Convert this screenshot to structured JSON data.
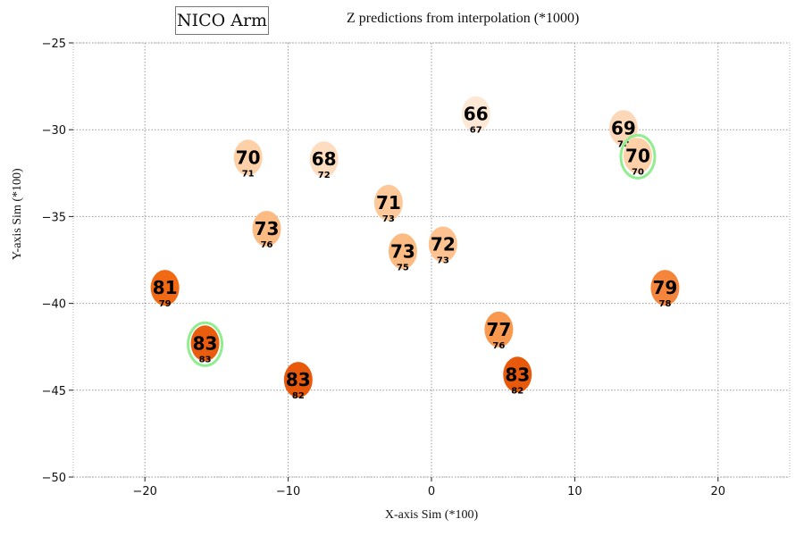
{
  "chart_data": {
    "type": "scatter",
    "title": "NICO Arm",
    "subtitle": "Z predictions from interpolation (*1000)",
    "xlabel": "X-axis Sim (*100)",
    "ylabel": "Y-axis Sim (*100)",
    "xlim": [
      -25,
      25
    ],
    "ylim": [
      -50,
      -25
    ],
    "xticks": [
      -20,
      -10,
      0,
      10,
      20
    ],
    "xtick_labels": [
      "−20",
      "−10",
      "0",
      "10",
      "20"
    ],
    "yticks": [
      -25,
      -30,
      -35,
      -40,
      -45,
      -50
    ],
    "ytick_labels": [
      "−25",
      "−30",
      "−35",
      "−40",
      "−45",
      "−50"
    ],
    "grid": true,
    "points": [
      {
        "x": 3.1,
        "y": -29.1,
        "value": 66,
        "sublabel": 67,
        "color": "#fde8d6",
        "highlight": false
      },
      {
        "x": 13.4,
        "y": -29.9,
        "value": 69,
        "sublabel": 70,
        "color": "#fdd8b8",
        "highlight": false
      },
      {
        "x": 14.4,
        "y": -31.5,
        "value": 70,
        "sublabel": 70,
        "color": "#fdd0a8",
        "highlight": true
      },
      {
        "x": -12.8,
        "y": -31.6,
        "value": 70,
        "sublabel": 71,
        "color": "#fdd0a8",
        "highlight": false
      },
      {
        "x": -7.5,
        "y": -31.7,
        "value": 68,
        "sublabel": 72,
        "color": "#fddcc0",
        "highlight": false
      },
      {
        "x": -3.0,
        "y": -34.2,
        "value": 71,
        "sublabel": 73,
        "color": "#fdc89a",
        "highlight": false
      },
      {
        "x": -11.5,
        "y": -35.7,
        "value": 73,
        "sublabel": 76,
        "color": "#fdbb84",
        "highlight": false
      },
      {
        "x": 0.8,
        "y": -36.6,
        "value": 72,
        "sublabel": 73,
        "color": "#fdc290",
        "highlight": false
      },
      {
        "x": -2.0,
        "y": -37.0,
        "value": 73,
        "sublabel": 75,
        "color": "#fdbb84",
        "highlight": false
      },
      {
        "x": -18.6,
        "y": -39.1,
        "value": 81,
        "sublabel": 79,
        "color": "#f16913",
        "highlight": false
      },
      {
        "x": 16.3,
        "y": -39.1,
        "value": 79,
        "sublabel": 78,
        "color": "#f5853b",
        "highlight": false
      },
      {
        "x": 4.7,
        "y": -41.5,
        "value": 77,
        "sublabel": 76,
        "color": "#f8994f",
        "highlight": false
      },
      {
        "x": -15.8,
        "y": -42.3,
        "value": 83,
        "sublabel": 83,
        "color": "#ea5c0e",
        "highlight": true
      },
      {
        "x": 6.0,
        "y": -44.1,
        "value": 83,
        "sublabel": 82,
        "color": "#e8590c",
        "highlight": false
      },
      {
        "x": -9.3,
        "y": -44.4,
        "value": 83,
        "sublabel": 82,
        "color": "#e8590c",
        "highlight": false
      }
    ],
    "highlight_color": "#90ee90",
    "grid_color": "#999999"
  }
}
